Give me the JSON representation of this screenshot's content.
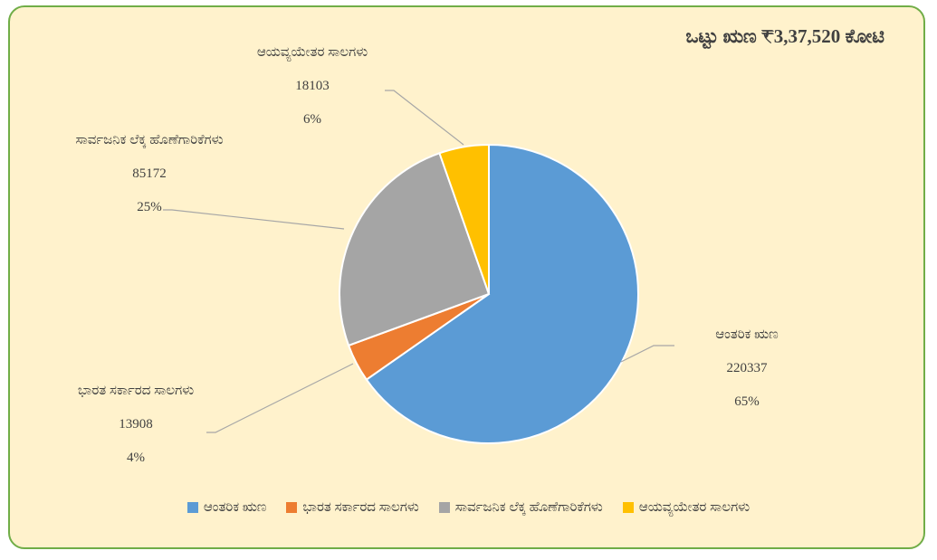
{
  "chart_data": {
    "type": "pie",
    "title": "ಒಟ್ಟು ಋಣ ₹3,37,520 ಕೋಟಿ",
    "categories": [
      "ಆಂತರಿಕ ಋಣ",
      "ಭಾರತ ಸರ್ಕಾರದ ಸಾಲಗಳು",
      "ಸಾರ್ವಜನಿಕ ಲೆಕ್ಕ ಹೊಣೆಗಾರಿಕೆಗಳು",
      "ಆಯವ್ಯಯೇತರ ಸಾಲಗಳು"
    ],
    "values": [
      220337,
      13908,
      85172,
      18103
    ],
    "percent_labels": [
      "65%",
      "4%",
      "25%",
      "6%"
    ],
    "colors": [
      "#5b9bd5",
      "#ed7d31",
      "#a5a5a5",
      "#ffc000"
    ],
    "legend": "bottom"
  }
}
